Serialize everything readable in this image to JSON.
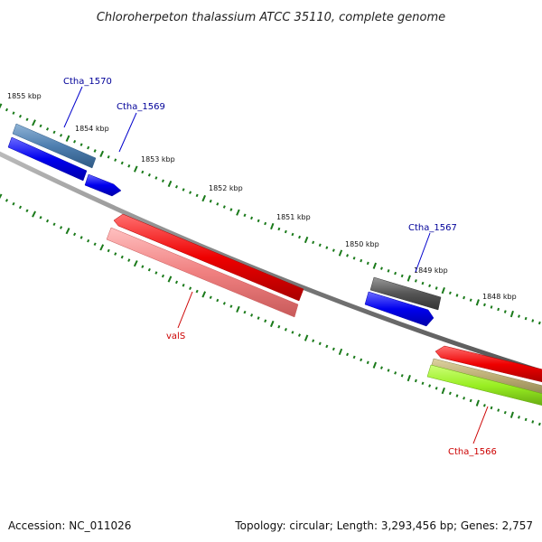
{
  "title": "Chloroherpeton thalassium ATCC 35110, complete genome",
  "footer": {
    "accession": "Accession: NC_011026",
    "summary": "Topology: circular; Length: 3,293,456 bp; Genes: 2,757"
  },
  "tick_labels": [
    "1855 kbp",
    "1854 kbp",
    "1853 kbp",
    "1852 kbp",
    "1851 kbp",
    "1850 kbp",
    "1849 kbp",
    "1848 kbp"
  ],
  "genes": [
    {
      "id": "ctha-1570",
      "label": "Ctha_1570",
      "color": "#4f7fb0",
      "label_color": "#000099"
    },
    {
      "id": "ctha-1569",
      "label": "Ctha_1569",
      "color": "#0000ee",
      "label_color": "#000099"
    },
    {
      "id": "ctha-1567",
      "label": "Ctha_1567",
      "color": "#555555",
      "label_color": "#000099"
    },
    {
      "id": "vals",
      "label": "valS",
      "color": "#ee0000",
      "label_color": "#cc0000"
    },
    {
      "id": "ctha-1566",
      "label": "Ctha_1566",
      "color": "#ee0000",
      "label_color": "#cc0000"
    }
  ],
  "colors": {
    "backbone": "#808080",
    "ticks": "#1a7a1a",
    "forward_blue": "#0000ee",
    "steel_blue": "#4f7fb0",
    "dark_gray": "#555555",
    "red": "#ee0000",
    "light_red": "#f08080",
    "olive": "#b8aa70",
    "lime": "#99ee22"
  }
}
